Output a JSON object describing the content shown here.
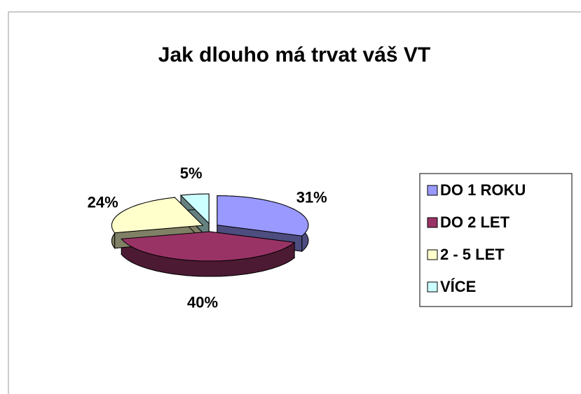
{
  "chart_data": {
    "type": "pie",
    "title": "Jak dlouho má trvat váš VT",
    "categories": [
      "DO 1 ROKU",
      "DO 2 LET",
      "2 - 5 LET",
      "VÍCE"
    ],
    "values": [
      31,
      40,
      24,
      5
    ],
    "value_labels": [
      "31%",
      "40%",
      "24%",
      "5%"
    ],
    "colors": [
      "#9999ff",
      "#993366",
      "#ffffcc",
      "#ccffff"
    ],
    "legend": "right"
  }
}
